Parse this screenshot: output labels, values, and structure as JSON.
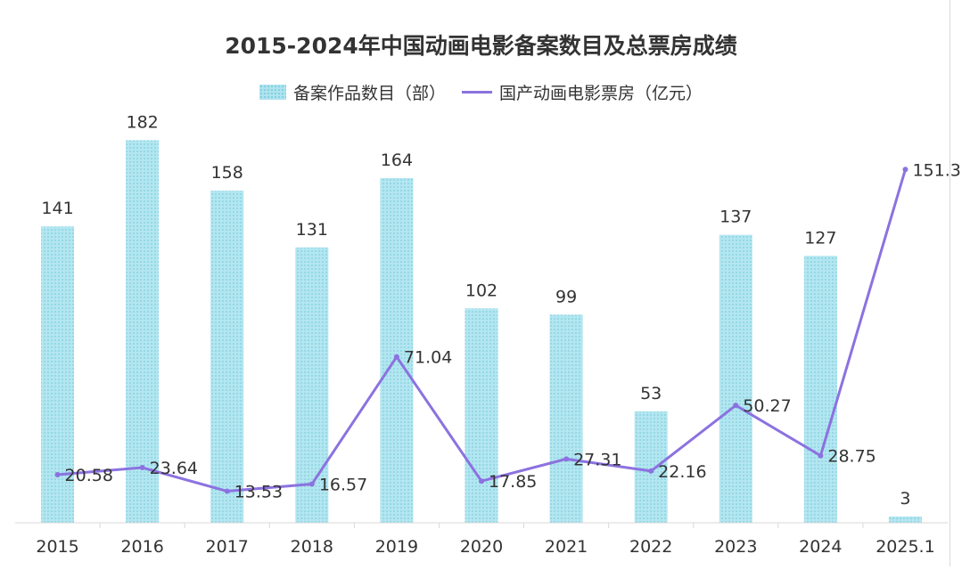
{
  "chart_data": {
    "type": "bar",
    "title": "2015-2024年中国动画电影备案数目及总票房成绩",
    "categories": [
      "2015",
      "2016",
      "2017",
      "2018",
      "2019",
      "2020",
      "2021",
      "2022",
      "2023",
      "2024",
      "2025.1"
    ],
    "series": [
      {
        "name": "备案作品数目（部）",
        "type": "bar",
        "color": "#aee3ee",
        "values": [
          141,
          182,
          158,
          131,
          164,
          102,
          99,
          53,
          137,
          127,
          3
        ]
      },
      {
        "name": "国产动画电影票房（亿元）",
        "type": "line",
        "color": "#8c72e0",
        "values": [
          20.58,
          23.64,
          13.53,
          16.57,
          71.04,
          17.85,
          27.31,
          22.16,
          50.27,
          28.75,
          151.3
        ]
      }
    ],
    "bar_axis_max": 200,
    "line_axis_max": 180,
    "legend_position": "top",
    "grid": false
  }
}
